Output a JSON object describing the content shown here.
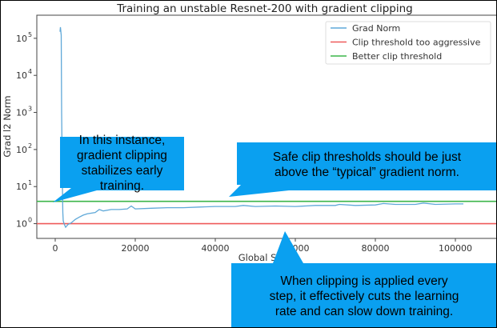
{
  "chart_data": {
    "type": "line",
    "title": "Training an unstable Resnet-200 with gradient clipping",
    "xlabel": "Global Step",
    "ylabel": "Grad l2 Norm",
    "xlim": [
      -4600,
      110400
    ],
    "ylim": [
      0.4,
      420000
    ],
    "yscale": "log",
    "grid": false,
    "legend_position": "top-right",
    "xticks": [
      0,
      20000,
      40000,
      60000,
      80000,
      100000
    ],
    "xtick_labels": [
      "0",
      "20000",
      "40000",
      "60000",
      "80000",
      "100000"
    ],
    "yticks": [
      1,
      10,
      100,
      1000,
      10000,
      100000
    ],
    "ytick_exponents": [
      "0",
      "1",
      "2",
      "3",
      "4",
      "5"
    ],
    "series": [
      {
        "name": "Grad Norm",
        "color": "#5fa8d8",
        "x": [
          1200,
          1300,
          1500,
          1600,
          1800,
          1900,
          2000,
          2200,
          2600,
          3200,
          4000,
          5000,
          6000,
          7000,
          8000,
          10000,
          11000,
          12000,
          14000,
          16000,
          18000,
          19000,
          20000,
          24000,
          28000,
          32000,
          36000,
          40000,
          45000,
          47000,
          50000,
          55000,
          60000,
          65000,
          70000,
          71000,
          75000,
          80000,
          82000,
          85000,
          90000,
          92000,
          95000,
          100000,
          102000
        ],
        "y": [
          150000,
          200000,
          120000,
          1000,
          10,
          2,
          1.2,
          1.0,
          0.8,
          0.95,
          1.05,
          1.3,
          1.5,
          1.7,
          1.85,
          2.0,
          2.4,
          2.2,
          2.4,
          2.4,
          2.5,
          3.0,
          2.5,
          2.6,
          2.7,
          2.7,
          2.8,
          2.9,
          2.9,
          3.1,
          2.9,
          3.0,
          2.9,
          3.1,
          3.1,
          3.3,
          3.1,
          3.2,
          3.5,
          3.3,
          3.3,
          3.6,
          3.3,
          3.4,
          3.4
        ]
      },
      {
        "name": "Clip threshold too aggressive",
        "color": "#ef5a5a",
        "x": [
          -4600,
          110400
        ],
        "y": [
          1,
          1
        ]
      },
      {
        "name": "Better clip threshold",
        "color": "#3cb54a",
        "x": [
          -4600,
          110400
        ],
        "y": [
          4,
          4
        ]
      }
    ]
  },
  "annotations": [
    {
      "text": "In this instance, gradient clipping stabilizes early training.",
      "lines": [
        "In this instance,",
        "gradient clipping",
        "stabilizes early training."
      ]
    },
    {
      "text": "Safe clip thresholds should be just above the “typical” gradient norm.",
      "lines": [
        "Safe clip thresholds should be just",
        "above the “typical” gradient norm."
      ]
    },
    {
      "text": "When clipping is applied every step, it effectively cuts the learning rate and can slow down training.",
      "lines": [
        "When clipping is applied every",
        "step, it effectively cuts the learning",
        "rate and can slow down training."
      ]
    }
  ],
  "callout_color": "#0aa0f0"
}
